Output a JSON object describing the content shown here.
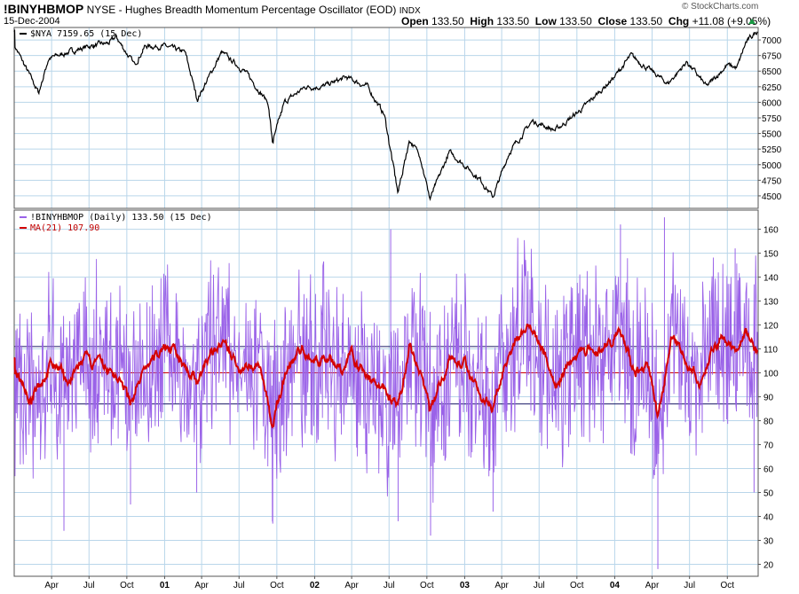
{
  "header": {
    "symbol": "!BINYHBMOP",
    "exchange_title": "NYSE - Hughes Breadth Momentum Percentage Oscillator (EOD)",
    "index_tag": "INDX",
    "date": "15-Dec-2004",
    "open_label": "Open",
    "open_value": "133.50",
    "high_label": "High",
    "high_value": "133.50",
    "low_label": "Low",
    "low_value": "133.50",
    "close_label": "Close",
    "close_value": "133.50",
    "chg_label": "Chg",
    "chg_value": "+11.08 (+9.05%)",
    "brand": "© StockCharts.com"
  },
  "colors": {
    "grid": "#b9d6ea",
    "price_line": "#000000",
    "oscillator": "#9a62e8",
    "ma": "#d40000",
    "ref_line_blue": "#1a1a66",
    "ref_line_red": "#cc0000",
    "arrow": "#1a9a44"
  },
  "chart_data": [
    {
      "type": "line",
      "legend": "$NYA 7159.65 (15 Dec)",
      "ylim": [
        4300,
        7200
      ],
      "yticks": [
        4500,
        4750,
        5000,
        5250,
        5500,
        5750,
        6000,
        6250,
        6500,
        6750,
        7000
      ],
      "x_range": [
        "2000-01-01",
        "2004-12-15"
      ],
      "series": [
        {
          "values_key": "anchors",
          "anchors": [
            [
              "2000-01-03",
              6900
            ],
            [
              "2000-03-01",
              6150
            ],
            [
              "2000-03-25",
              6700
            ],
            [
              "2000-05-10",
              6800
            ],
            [
              "2000-07-01",
              6900
            ],
            [
              "2000-08-20",
              6950
            ],
            [
              "2000-09-05",
              7050
            ],
            [
              "2000-10-20",
              6600
            ],
            [
              "2000-11-15",
              6900
            ],
            [
              "2001-01-02",
              6900
            ],
            [
              "2001-02-20",
              6800
            ],
            [
              "2001-03-22",
              6050
            ],
            [
              "2001-05-20",
              6800
            ],
            [
              "2001-07-15",
              6500
            ],
            [
              "2001-09-10",
              6000
            ],
            [
              "2001-09-21",
              5350
            ],
            [
              "2001-10-20",
              6000
            ],
            [
              "2001-12-10",
              6250
            ],
            [
              "2002-01-20",
              6250
            ],
            [
              "2002-03-20",
              6400
            ],
            [
              "2002-05-10",
              6250
            ],
            [
              "2002-06-20",
              5800
            ],
            [
              "2002-07-23",
              4550
            ],
            [
              "2002-08-20",
              5400
            ],
            [
              "2002-09-15",
              5150
            ],
            [
              "2002-10-09",
              4450
            ],
            [
              "2002-11-25",
              5200
            ],
            [
              "2002-12-31",
              5000
            ],
            [
              "2003-02-10",
              4750
            ],
            [
              "2003-03-11",
              4480
            ],
            [
              "2003-04-20",
              5200
            ],
            [
              "2003-06-15",
              5700
            ],
            [
              "2003-08-10",
              5550
            ],
            [
              "2003-10-15",
              5900
            ],
            [
              "2003-12-31",
              6400
            ],
            [
              "2004-02-10",
              6750
            ],
            [
              "2004-03-20",
              6550
            ],
            [
              "2004-05-10",
              6300
            ],
            [
              "2004-06-25",
              6650
            ],
            [
              "2004-08-12",
              6250
            ],
            [
              "2004-10-01",
              6600
            ],
            [
              "2004-10-25",
              6550
            ],
            [
              "2004-11-15",
              6950
            ],
            [
              "2004-12-15",
              7159.65
            ]
          ]
        }
      ]
    },
    {
      "type": "line",
      "legend_osc": "!BINYHBMOP (Daily) 133.50 (15 Dec)",
      "legend_ma": "MA(21) 107.90",
      "ylim": [
        15,
        168
      ],
      "yticks": [
        20,
        30,
        40,
        50,
        60,
        70,
        80,
        90,
        100,
        110,
        120,
        130,
        140,
        150,
        160
      ],
      "reference_lines": [
        87,
        100,
        111
      ],
      "ma_anchors": [
        [
          "2000-01-03",
          102
        ],
        [
          "2000-02-10",
          88
        ],
        [
          "2000-04-01",
          104
        ],
        [
          "2000-05-15",
          96
        ],
        [
          "2000-06-15",
          105
        ],
        [
          "2000-08-01",
          103
        ],
        [
          "2000-09-10",
          98
        ],
        [
          "2000-10-10",
          88
        ],
        [
          "2000-11-25",
          104
        ],
        [
          "2001-01-05",
          112
        ],
        [
          "2001-02-20",
          104
        ],
        [
          "2001-03-20",
          97
        ],
        [
          "2001-04-25",
          108
        ],
        [
          "2001-05-20",
          112
        ],
        [
          "2001-07-01",
          102
        ],
        [
          "2001-08-20",
          105
        ],
        [
          "2001-09-21",
          77
        ],
        [
          "2001-10-25",
          102
        ],
        [
          "2001-12-01",
          110
        ],
        [
          "2002-01-10",
          104
        ],
        [
          "2002-02-05",
          108
        ],
        [
          "2002-03-10",
          100
        ],
        [
          "2002-04-01",
          109
        ],
        [
          "2002-05-10",
          97
        ],
        [
          "2002-06-20",
          95
        ],
        [
          "2002-07-23",
          84
        ],
        [
          "2002-08-20",
          110
        ],
        [
          "2002-09-25",
          96
        ],
        [
          "2002-10-10",
          83
        ],
        [
          "2002-11-25",
          106
        ],
        [
          "2002-12-31",
          104
        ],
        [
          "2003-02-10",
          91
        ],
        [
          "2003-03-11",
          86
        ],
        [
          "2003-04-20",
          110
        ],
        [
          "2003-05-25",
          117
        ],
        [
          "2003-06-15",
          118
        ],
        [
          "2003-07-25",
          104
        ],
        [
          "2003-08-15",
          96
        ],
        [
          "2003-09-10",
          104
        ],
        [
          "2003-10-15",
          110
        ],
        [
          "2003-11-20",
          108
        ],
        [
          "2003-12-31",
          114
        ],
        [
          "2004-01-15",
          116
        ],
        [
          "2004-02-20",
          100
        ],
        [
          "2004-03-20",
          104
        ],
        [
          "2004-04-15",
          82
        ],
        [
          "2004-05-01",
          96
        ],
        [
          "2004-05-20",
          116
        ],
        [
          "2004-06-30",
          104
        ],
        [
          "2004-07-25",
          96
        ],
        [
          "2004-08-25",
          108
        ],
        [
          "2004-09-20",
          117
        ],
        [
          "2004-10-20",
          108
        ],
        [
          "2004-11-15",
          118
        ],
        [
          "2004-12-15",
          107.9
        ]
      ],
      "spikes": [
        [
          "2000-05-01",
          34
        ],
        [
          "2000-10-10",
          45
        ],
        [
          "2001-03-20",
          50
        ],
        [
          "2001-09-21",
          37
        ],
        [
          "2002-07-05",
          160
        ],
        [
          "2002-07-23",
          38
        ],
        [
          "2002-10-10",
          32
        ],
        [
          "2003-03-11",
          42
        ],
        [
          "2004-01-15",
          162
        ],
        [
          "2004-04-15",
          18
        ],
        [
          "2004-05-01",
          165
        ],
        [
          "2004-10-20",
          152
        ],
        [
          "2004-12-05",
          50
        ]
      ]
    }
  ],
  "x_axis": {
    "labels": [
      {
        "date": "2000-04-01",
        "text": "Apr",
        "bold": false
      },
      {
        "date": "2000-07-01",
        "text": "Jul",
        "bold": false
      },
      {
        "date": "2000-10-01",
        "text": "Oct",
        "bold": false
      },
      {
        "date": "2001-01-01",
        "text": "01",
        "bold": true
      },
      {
        "date": "2001-04-01",
        "text": "Apr",
        "bold": false
      },
      {
        "date": "2001-07-01",
        "text": "Jul",
        "bold": false
      },
      {
        "date": "2001-10-01",
        "text": "Oct",
        "bold": false
      },
      {
        "date": "2002-01-01",
        "text": "02",
        "bold": true
      },
      {
        "date": "2002-04-01",
        "text": "Apr",
        "bold": false
      },
      {
        "date": "2002-07-01",
        "text": "Jul",
        "bold": false
      },
      {
        "date": "2002-10-01",
        "text": "Oct",
        "bold": false
      },
      {
        "date": "2003-01-01",
        "text": "03",
        "bold": true
      },
      {
        "date": "2003-04-01",
        "text": "Apr",
        "bold": false
      },
      {
        "date": "2003-07-01",
        "text": "Jul",
        "bold": false
      },
      {
        "date": "2003-10-01",
        "text": "Oct",
        "bold": false
      },
      {
        "date": "2004-01-01",
        "text": "04",
        "bold": true
      },
      {
        "date": "2004-04-01",
        "text": "Apr",
        "bold": false
      },
      {
        "date": "2004-07-01",
        "text": "Jul",
        "bold": false
      },
      {
        "date": "2004-10-01",
        "text": "Oct",
        "bold": false
      }
    ]
  }
}
